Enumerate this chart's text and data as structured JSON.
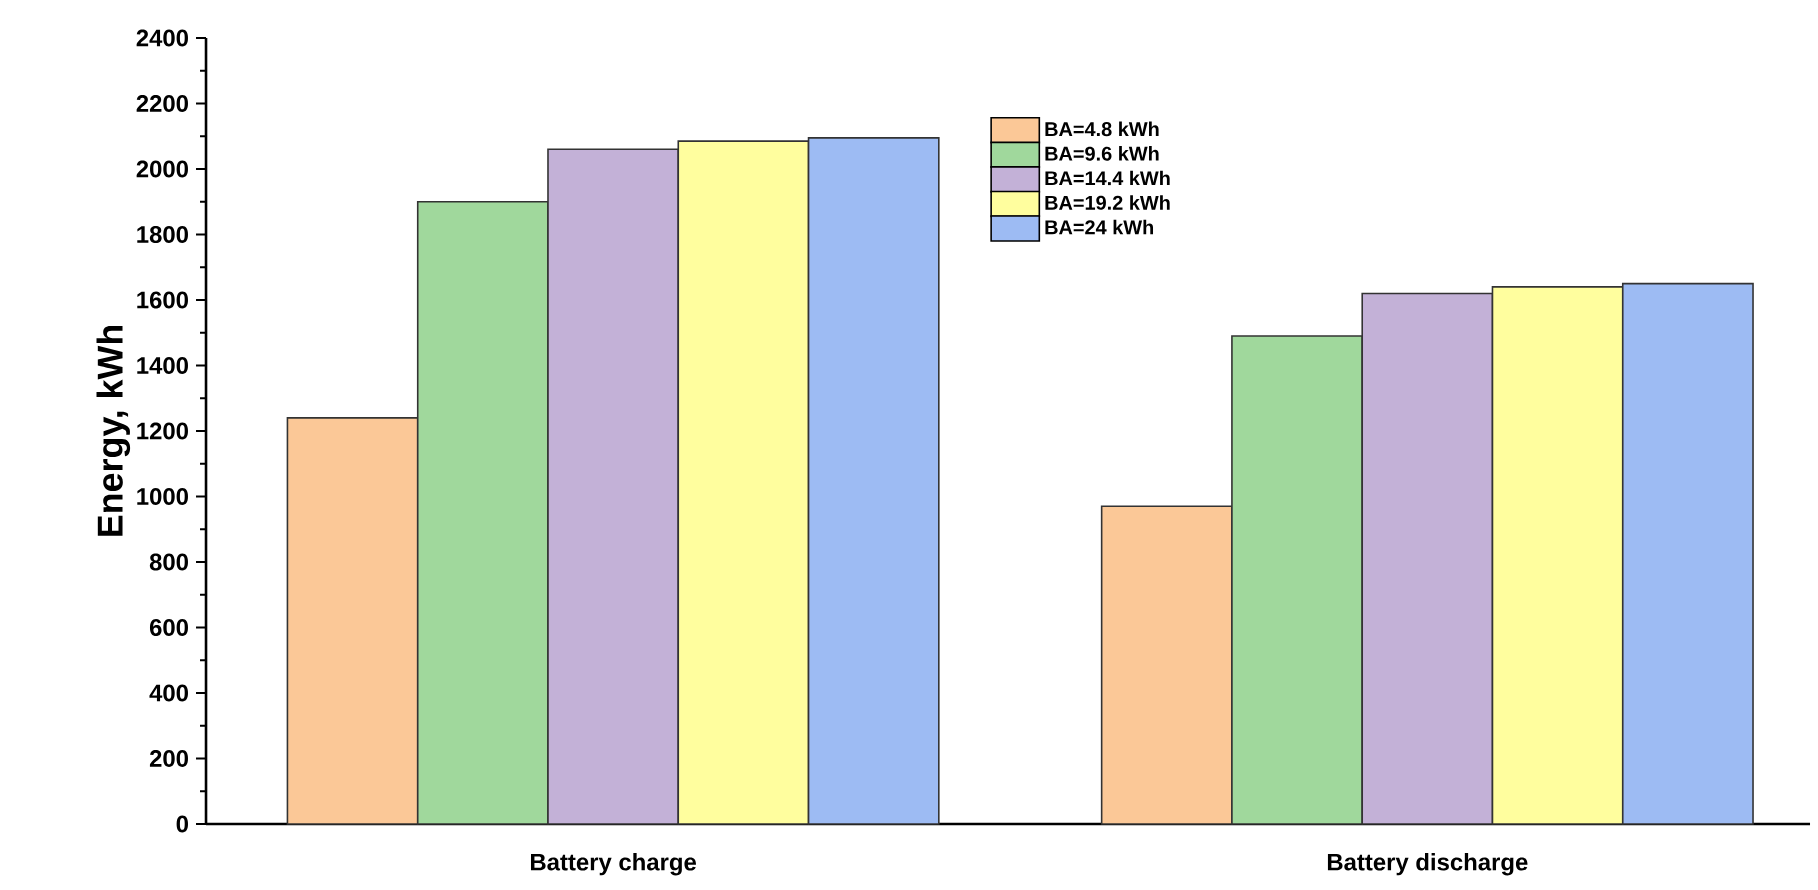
{
  "chart_data": {
    "type": "bar",
    "ylabel": "Energy, kWh",
    "categories": [
      "Battery charge",
      "Battery discharge"
    ],
    "series": [
      {
        "name": "BA=4.8 kWh",
        "color": "#fbc897",
        "values": [
          1240,
          970
        ]
      },
      {
        "name": "BA=9.6  kWh",
        "color": "#a0d89c",
        "values": [
          1900,
          1490
        ]
      },
      {
        "name": "BA=14.4 kWh",
        "color": "#c3b1d7",
        "values": [
          2060,
          1620
        ]
      },
      {
        "name": "BA=19.2 kWh",
        "color": "#fffe9e",
        "values": [
          2085,
          1640
        ]
      },
      {
        "name": "BA=24 kWh",
        "color": "#9dbbf3",
        "values": [
          2095,
          1650
        ]
      }
    ],
    "ylim": [
      0,
      2400
    ],
    "yticks": [
      0,
      200,
      400,
      600,
      800,
      1000,
      1200,
      1400,
      1600,
      1800,
      2000,
      2200,
      2400
    ],
    "grid": false,
    "legend": "top"
  }
}
